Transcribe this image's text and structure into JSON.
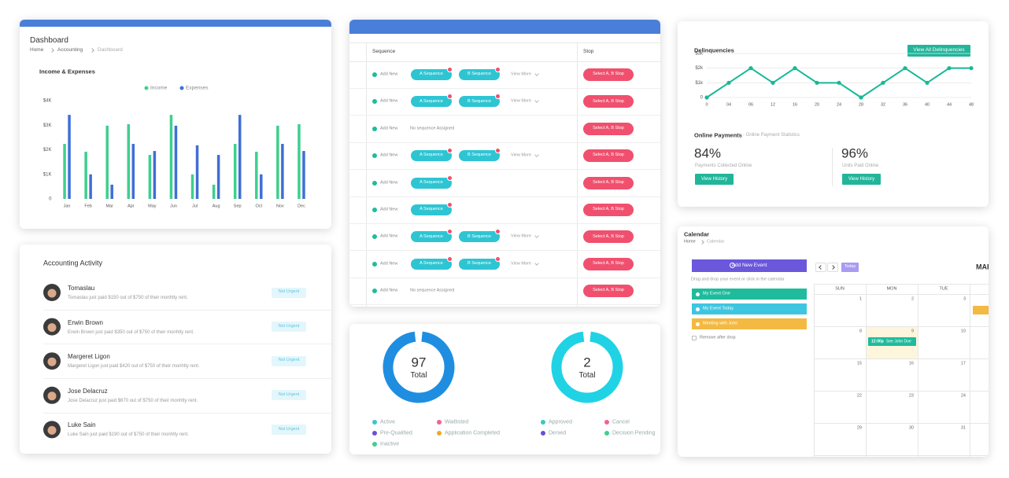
{
  "dashboard": {
    "title": "Dashboard",
    "breadcrumb": [
      "Home",
      "Accounting",
      "Dashboard"
    ]
  },
  "chart_data": [
    {
      "type": "bar",
      "title": "Income & Expenses",
      "categories": [
        "Jan",
        "Feb",
        "Mar",
        "Apr",
        "May",
        "Jun",
        "Jul",
        "Aug",
        "Sep",
        "Oct",
        "Nov",
        "Dec"
      ],
      "series": [
        {
          "name": "Income",
          "color": "#3ecf8e",
          "values": [
            2240,
            1920,
            2980,
            3040,
            1790,
            3420,
            1000,
            580,
            2240,
            1920,
            2980,
            3040
          ]
        },
        {
          "name": "Expenses",
          "color": "#3f6fd6",
          "values": [
            3420,
            1000,
            580,
            2240,
            1950,
            2980,
            2180,
            1790,
            3420,
            1000,
            2240,
            1950
          ]
        }
      ],
      "ylim": [
        0,
        4000
      ],
      "yticks": [
        0,
        {
          "value": 1000,
          "label": "$1K"
        },
        {
          "value": 2000,
          "label": "$2K"
        },
        {
          "value": 3000,
          "label": "$3K"
        },
        {
          "value": 4000,
          "label": "$4K"
        }
      ],
      "grid": false,
      "legend": "top"
    },
    {
      "type": "line",
      "title": "Delinquencies",
      "categories": [
        "0",
        "04",
        "06",
        "12",
        "16",
        "20",
        "24",
        "28",
        "32",
        "36",
        "40",
        "44",
        "48"
      ],
      "values": [
        0,
        1000,
        2000,
        1000,
        2000,
        1000,
        1000,
        0,
        1000,
        2000,
        1000,
        2000,
        2000
      ],
      "color": "#17b897",
      "ylim": [
        0,
        3000
      ],
      "yticks": [
        0,
        {
          "value": 1000,
          "label": "$1k"
        },
        {
          "value": 2000,
          "label": "$2k"
        },
        {
          "value": 3000,
          "label": "$3k"
        }
      ],
      "grid": true
    }
  ],
  "delinquencies": {
    "button": "View All Delinquencies"
  },
  "accounting": {
    "title": "Accounting Activity",
    "rows": [
      {
        "name": "Tomaslau",
        "text": "Tomaslau just paid $150 out of $750 of their monhtly rent.",
        "badge": "Not Urgent"
      },
      {
        "name": "Erwin Brown",
        "text": "Erwin Brown just paid $350 out of $750 of their monhtly rent.",
        "badge": "Not Urgent"
      },
      {
        "name": "Margeret Ligon",
        "text": "Margeret Ligon just paid $420 out of $750 of their monhtly rent.",
        "badge": "Not Urgent"
      },
      {
        "name": "Jose Delacruz",
        "text": "Jose Delacruz just paid $670 out of $750 of their monhtly rent.",
        "badge": "Not Urgent"
      },
      {
        "name": "Luke Sain",
        "text": "Luke Sain just paid $190 out of $750 of their monhtly rent.",
        "badge": "Not Urgent"
      }
    ]
  },
  "sequences": {
    "headers": [
      "Sequence",
      "Stop"
    ],
    "rows": [
      {
        "add": "Add New",
        "chips": [
          "A Sequence",
          "B Sequence"
        ],
        "more": "View More",
        "stop": "Select A, B Stop"
      },
      {
        "add": "Add New",
        "chips": [
          "A Sequence",
          "B Sequence"
        ],
        "more": "View More",
        "stop": "Select A, B Stop"
      },
      {
        "add": "Add New",
        "note": "No sequence Assigned",
        "stop": "Select A, B Stop"
      },
      {
        "add": "Add New",
        "chips": [
          "A Sequence",
          "B Sequence"
        ],
        "more": "View More",
        "stop": "Select A, B Stop"
      },
      {
        "add": "Add New",
        "chips": [
          "A Sequence"
        ],
        "stop": "Select A, B Stop"
      },
      {
        "add": "Add New",
        "chips": [
          "A Sequence"
        ],
        "stop": "Select A, B Stop"
      },
      {
        "add": "Add New",
        "chips": [
          "A Sequence",
          "B Sequence"
        ],
        "more": "View More",
        "stop": "Select A, B Stop"
      },
      {
        "add": "Add New",
        "chips": [
          "A Sequence",
          "B Sequence"
        ],
        "more": "View More",
        "stop": "Select A, B Stop"
      },
      {
        "add": "Add New",
        "note": "No sequence Assigned",
        "stop": "Select A, B Stop"
      }
    ]
  },
  "totals": [
    {
      "number": 97,
      "label": "Total",
      "color": "#1f8ee0",
      "legend": [
        {
          "name": "Active",
          "color": "#3cc6c9"
        },
        {
          "name": "Waitlisted",
          "color": "#f06292"
        },
        {
          "name": "Pre-Qualified",
          "color": "#6a4fd8"
        },
        {
          "name": "Application Completed",
          "color": "#f5a623"
        },
        {
          "name": "Inactive",
          "color": "#3ecf8e"
        }
      ]
    },
    {
      "number": 2,
      "label": "Total",
      "color": "#1fd3e5",
      "legend": [
        {
          "name": "Approved",
          "color": "#3cc6c9"
        },
        {
          "name": "Cancel",
          "color": "#f06292"
        },
        {
          "name": "Denied",
          "color": "#6a4fd8"
        },
        {
          "name": "Decision Pending",
          "color": "#3ecf8e"
        }
      ]
    }
  ],
  "payments": {
    "title": "Online Payments",
    "subtitle": "- Online Payment Statistics",
    "stats": [
      {
        "value": "84%",
        "label": "Payments Collected Online",
        "button": "View History"
      },
      {
        "value": "96%",
        "label": "Units Paid Online",
        "button": "View History"
      }
    ]
  },
  "calendar": {
    "title": "Calendar",
    "breadcrumb": [
      "Home",
      "Calendar"
    ],
    "add_button": "Add New Event",
    "hint": "Drag and drop your event or click in the calendar",
    "events": [
      {
        "name": "My Event One",
        "color": "#1ebc9c"
      },
      {
        "name": "My Event Today",
        "color": "#3ec6e0"
      },
      {
        "name": "Meeting with John",
        "color": "#f4b942"
      }
    ],
    "remove_label": "Remove after drop",
    "today": "Today",
    "month": "MAR",
    "weekdays": [
      "SUN",
      "MON",
      "TUE"
    ],
    "days": [
      [
        1,
        2,
        3
      ],
      [
        8,
        9,
        10
      ],
      [
        15,
        16,
        17
      ],
      [
        22,
        23,
        24
      ],
      [
        29,
        30,
        31
      ]
    ],
    "cell_event": {
      "time": "12:00p",
      "title": "See John Doe"
    }
  }
}
